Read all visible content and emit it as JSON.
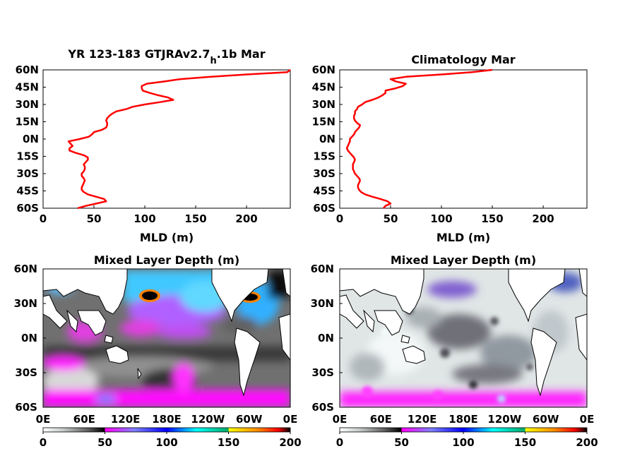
{
  "chart_data": [
    {
      "type": "line",
      "title": "YR 123-183 GTJRAv2.7",
      "title_sub": "h",
      "title_suffix": ".1b Mar",
      "xlabel": "MLD (m)",
      "ylabel": "",
      "xlim": [
        0,
        243
      ],
      "ylim": [
        -60,
        60
      ],
      "xticks": [
        0,
        50,
        100,
        150,
        200
      ],
      "yticks": [
        -60,
        -45,
        -30,
        -15,
        0,
        15,
        30,
        45,
        60
      ],
      "ytick_labels": [
        "60S",
        "45S",
        "30S",
        "15S",
        "0N",
        "15N",
        "30N",
        "45N",
        "60N"
      ],
      "line_color": "#ff0000",
      "series": [
        {
          "lat": [
            -60,
            -58,
            -56,
            -54,
            -52,
            -50,
            -48,
            -46,
            -44,
            -42,
            -40,
            -38,
            -36,
            -34,
            -32,
            -30,
            -28,
            -26,
            -24,
            -22,
            -20,
            -18,
            -16,
            -14,
            -12,
            -10,
            -8,
            -6,
            -4,
            -2,
            0,
            2,
            4,
            6,
            8,
            10,
            12,
            14,
            16,
            18,
            20,
            22,
            24,
            26,
            28,
            30,
            32,
            34,
            36,
            38,
            40,
            42,
            44,
            46,
            48,
            50,
            52,
            54,
            56,
            58,
            60
          ],
          "mld": [
            34,
            42,
            52,
            62,
            60,
            52,
            44,
            40,
            38,
            38,
            39,
            40,
            41,
            40,
            38,
            38,
            40,
            41,
            41,
            40,
            42,
            44,
            44,
            40,
            32,
            26,
            26,
            29,
            27,
            25,
            36,
            45,
            48,
            50,
            58,
            62,
            63,
            63,
            62,
            63,
            65,
            68,
            72,
            82,
            88,
            100,
            115,
            128,
            123,
            113,
            105,
            98,
            97,
            97,
            102,
            120,
            135,
            165,
            200,
            240,
            243
          ]
        }
      ]
    },
    {
      "type": "line",
      "title": "Climatology Mar",
      "xlabel": "MLD (m)",
      "ylabel": "",
      "xlim": [
        0,
        243
      ],
      "ylim": [
        -60,
        60
      ],
      "xticks": [
        0,
        50,
        100,
        150,
        200
      ],
      "yticks": [
        -60,
        -45,
        -30,
        -15,
        0,
        15,
        30,
        45,
        60
      ],
      "ytick_labels": [
        "60S",
        "45S",
        "30S",
        "15S",
        "0N",
        "15N",
        "30N",
        "45N",
        "60N"
      ],
      "line_color": "#ff0000",
      "series": [
        {
          "lat": [
            -60,
            -58,
            -56,
            -54,
            -52,
            -50,
            -48,
            -46,
            -44,
            -42,
            -40,
            -38,
            -36,
            -34,
            -32,
            -30,
            -28,
            -26,
            -24,
            -22,
            -20,
            -18,
            -16,
            -14,
            -12,
            -10,
            -8,
            -6,
            -4,
            -2,
            0,
            2,
            4,
            6,
            8,
            10,
            12,
            14,
            16,
            18,
            20,
            22,
            24,
            26,
            28,
            30,
            32,
            34,
            36,
            38,
            40,
            42,
            44,
            46,
            48,
            50,
            52,
            54,
            56,
            58,
            60
          ],
          "mld": [
            43,
            45,
            50,
            47,
            40,
            32,
            25,
            21,
            19,
            18,
            18,
            19,
            20,
            19,
            17,
            15,
            14,
            13,
            13,
            13,
            14,
            15,
            14,
            12,
            10,
            8,
            7,
            8,
            9,
            10,
            10,
            12,
            14,
            15,
            17,
            19,
            20,
            17,
            15,
            14,
            14,
            15,
            15,
            17,
            18,
            22,
            25,
            32,
            38,
            42,
            45,
            45,
            55,
            62,
            65,
            55,
            50,
            65,
            100,
            130,
            150
          ]
        }
      ]
    },
    {
      "type": "heatmap",
      "title": "Mixed Layer Depth (m)",
      "xtick_labels": [
        "0E",
        "60E",
        "120E",
        "180E",
        "120W",
        "60W",
        "0E"
      ],
      "ytick_labels": [
        "60S",
        "30S",
        "0N",
        "30N",
        "60N"
      ],
      "colorbar_ticks": [
        0,
        50,
        100,
        150,
        200
      ],
      "colormap": [
        "#ffffff",
        "#c8cccc",
        "#606060",
        "#000000",
        "#ff00ff",
        "#8080ff",
        "#0000ff",
        "#00ffff",
        "#00aa66",
        "#ffff00",
        "#ff8800",
        "#ff0000",
        "#000000"
      ]
    },
    {
      "type": "heatmap",
      "title": "Mixed Layer Depth (m)",
      "xtick_labels": [
        "0E",
        "60E",
        "120E",
        "180E",
        "120W",
        "60W",
        "0E"
      ],
      "ytick_labels": [
        "60S",
        "30S",
        "0N",
        "30N",
        "60N"
      ],
      "colorbar_ticks": [
        0,
        50,
        100,
        150,
        200
      ],
      "colormap": [
        "#ffffff",
        "#c8cccc",
        "#606060",
        "#000000",
        "#ff00ff",
        "#8080ff",
        "#0000ff",
        "#00ffff",
        "#00aa66",
        "#ffff00",
        "#ff8800",
        "#ff0000",
        "#000000"
      ]
    }
  ]
}
